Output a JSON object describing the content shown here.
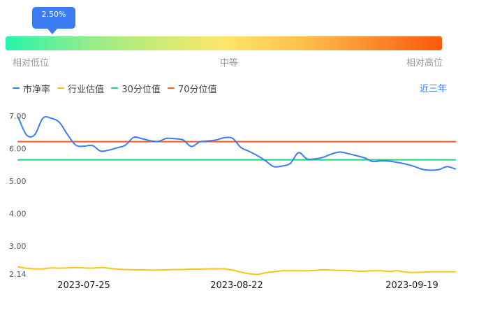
{
  "slider": {
    "value_label": "2.50%",
    "value": 0.025,
    "left_label": "相对低位",
    "mid_label": "中等",
    "right_label": "相对高位"
  },
  "period_label": "近三年",
  "legend": [
    {
      "label": "市净率",
      "color": "#3b7cf5"
    },
    {
      "label": "行业估值",
      "color": "#f5c518"
    },
    {
      "label": "30分位值",
      "color": "#1ed37a"
    },
    {
      "label": "70分位值",
      "color": "#ff5a1f"
    }
  ],
  "chart_data": {
    "type": "line",
    "y_ticks": [
      "2.14",
      "3.00",
      "4.00",
      "5.00",
      "6.00",
      "7.00"
    ],
    "x_ticks": [
      "2023-07-25",
      "2023-08-22",
      "2023-09-19"
    ],
    "ylim": [
      2.14,
      7.06
    ],
    "grid": false,
    "series": [
      {
        "name": "市净率",
        "color": "#3b7cf5",
        "values": [
          6.96,
          6.42,
          6.42,
          6.93,
          6.93,
          6.8,
          6.42,
          6.1,
          6.07,
          6.09,
          5.92,
          5.95,
          6.02,
          6.1,
          6.34,
          6.3,
          6.24,
          6.22,
          6.31,
          6.3,
          6.26,
          6.06,
          6.2,
          6.23,
          6.26,
          6.33,
          6.31,
          6.03,
          5.91,
          5.78,
          5.62,
          5.44,
          5.46,
          5.54,
          5.87,
          5.68,
          5.68,
          5.73,
          5.83,
          5.89,
          5.84,
          5.78,
          5.71,
          5.6,
          5.62,
          5.61,
          5.57,
          5.52,
          5.45,
          5.36,
          5.33,
          5.35,
          5.44,
          5.37
        ]
      },
      {
        "name": "行业估值",
        "color": "#f5c518",
        "values": [
          2.36,
          2.32,
          2.3,
          2.3,
          2.33,
          2.32,
          2.33,
          2.34,
          2.33,
          2.32,
          2.34,
          2.32,
          2.29,
          2.28,
          2.27,
          2.27,
          2.26,
          2.26,
          2.27,
          2.28,
          2.28,
          2.29,
          2.29,
          2.3,
          2.3,
          2.3,
          2.26,
          2.2,
          2.15,
          2.13,
          2.18,
          2.21,
          2.24,
          2.24,
          2.24,
          2.24,
          2.25,
          2.27,
          2.26,
          2.25,
          2.25,
          2.23,
          2.23,
          2.24,
          2.24,
          2.22,
          2.24,
          2.2,
          2.19,
          2.2,
          2.21,
          2.21,
          2.21,
          2.21
        ]
      },
      {
        "name": "30分位值",
        "color": "#1ed37a",
        "values": [
          5.65,
          5.65
        ]
      },
      {
        "name": "70分位值",
        "color": "#ff5a1f",
        "values": [
          6.21,
          6.21
        ]
      }
    ]
  }
}
